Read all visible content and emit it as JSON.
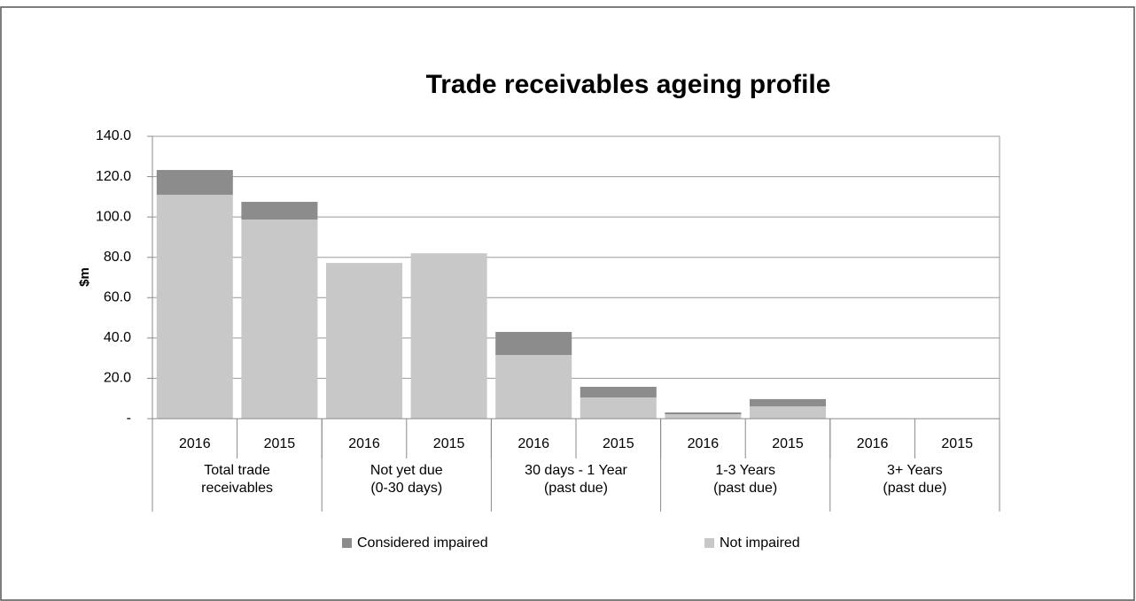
{
  "chart_data": {
    "type": "bar",
    "stacked": true,
    "title": "Trade receivables ageing profile",
    "y_label": "$m",
    "categories": [
      "2016",
      "2015",
      "2016",
      "2015",
      "2016",
      "2015",
      "2016",
      "2015",
      "2016",
      "2015"
    ],
    "groups": [
      {
        "label": [
          "Total trade",
          "receivables"
        ],
        "size": 2
      },
      {
        "label": [
          "Not yet due",
          "(0-30 days)"
        ],
        "size": 2
      },
      {
        "label": [
          "30 days - 1 Year",
          "(past due)"
        ],
        "size": 2
      },
      {
        "label": [
          "1-3 Years",
          "(past due)"
        ],
        "size": 2
      },
      {
        "label": [
          "3+ Years",
          "(past due)"
        ],
        "size": 2
      }
    ],
    "series": [
      {
        "name": "Considered impaired",
        "color": "#8c8c8c",
        "values": [
          12.3,
          8.8,
          0,
          0,
          11.4,
          5.3,
          0.9,
          3.6,
          0,
          0
        ]
      },
      {
        "name": "Not impaired",
        "color": "#c8c8c8",
        "values": [
          111.0,
          98.7,
          77.2,
          82.0,
          31.6,
          10.5,
          2.2,
          6.1,
          0,
          0
        ]
      }
    ],
    "ylim": [
      0,
      140
    ],
    "yticks": [
      {
        "value": 0,
        "label": "-"
      },
      {
        "value": 20,
        "label": "20.0"
      },
      {
        "value": 40,
        "label": "40.0"
      },
      {
        "value": 60,
        "label": "60.0"
      },
      {
        "value": 80,
        "label": "80.0"
      },
      {
        "value": 100,
        "label": "100.0"
      },
      {
        "value": 120,
        "label": "120.0"
      },
      {
        "value": 140,
        "label": "140.0"
      }
    ],
    "grid": true,
    "legend": "bottom"
  }
}
